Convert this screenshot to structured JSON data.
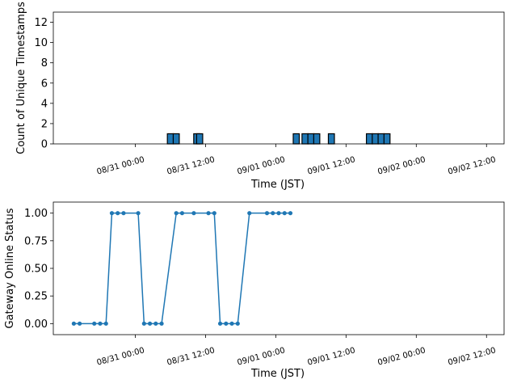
{
  "chart_data": [
    {
      "type": "bar",
      "title": "",
      "xlabel": "Time (JST)",
      "ylabel": "Count of Unique Timestamps",
      "x_range": [
        "2024-08-30 10:00",
        "2024-09-02 15:00"
      ],
      "ylim": [
        0,
        13
      ],
      "yticks": [
        0,
        2,
        4,
        6,
        8,
        10,
        12
      ],
      "xticks": [
        "08/31 00:00",
        "08/31 12:00",
        "09/01 00:00",
        "09/01 12:00",
        "09/02 00:00",
        "09/02 12:00"
      ],
      "grid": false,
      "legend": "none",
      "bar_color": "#1f77b4",
      "series": [
        {
          "x": [
            "2024-08-31 06:00",
            "2024-08-31 07:00",
            "2024-08-31 10:30",
            "2024-08-31 11:00",
            "2024-09-01 03:30",
            "2024-09-01 05:00",
            "2024-09-01 06:00",
            "2024-09-01 07:00",
            "2024-09-01 09:30",
            "2024-09-01 16:00",
            "2024-09-01 17:00",
            "2024-09-01 18:00",
            "2024-09-01 19:00"
          ],
          "values": [
            1,
            1,
            1,
            1,
            1,
            1,
            1,
            1,
            1,
            1,
            1,
            1,
            1
          ]
        }
      ]
    },
    {
      "type": "line",
      "title": "",
      "xlabel": "Time (JST)",
      "ylabel": "Gateway Online Status",
      "x_range": [
        "2024-08-30 10:00",
        "2024-09-02 15:00"
      ],
      "ylim": [
        -0.1,
        1.1
      ],
      "yticks": [
        0.0,
        0.25,
        0.5,
        0.75,
        1.0
      ],
      "ytick_labels": [
        "0.00",
        "0.25",
        "0.50",
        "0.75",
        "1.00"
      ],
      "xticks": [
        "08/31 00:00",
        "08/31 12:00",
        "09/01 00:00",
        "09/01 12:00",
        "09/02 00:00",
        "09/02 12:00"
      ],
      "grid": false,
      "legend": "none",
      "line_color": "#1f77b4",
      "series": [
        {
          "x": [
            "2024-08-30 13:30",
            "2024-08-30 14:30",
            "2024-08-30 17:00",
            "2024-08-30 18:00",
            "2024-08-30 19:00",
            "2024-08-30 20:00",
            "2024-08-30 21:00",
            "2024-08-30 22:00",
            "2024-08-31 00:30",
            "2024-08-31 01:30",
            "2024-08-31 02:30",
            "2024-08-31 03:30",
            "2024-08-31 04:30",
            "2024-08-31 07:00",
            "2024-08-31 08:00",
            "2024-08-31 10:00",
            "2024-08-31 12:30",
            "2024-08-31 13:30",
            "2024-08-31 14:30",
            "2024-08-31 15:30",
            "2024-08-31 16:30",
            "2024-08-31 17:30",
            "2024-08-31 19:30",
            "2024-08-31 22:30",
            "2024-08-31 23:30",
            "2024-09-01 00:30",
            "2024-09-01 01:30",
            "2024-09-01 02:30"
          ],
          "values": [
            0,
            0,
            0,
            0,
            0,
            1,
            1,
            1,
            1,
            0,
            0,
            0,
            0,
            1,
            1,
            1,
            1,
            1,
            0,
            0,
            0,
            0,
            1,
            1,
            1,
            1,
            1,
            1
          ]
        }
      ]
    }
  ]
}
